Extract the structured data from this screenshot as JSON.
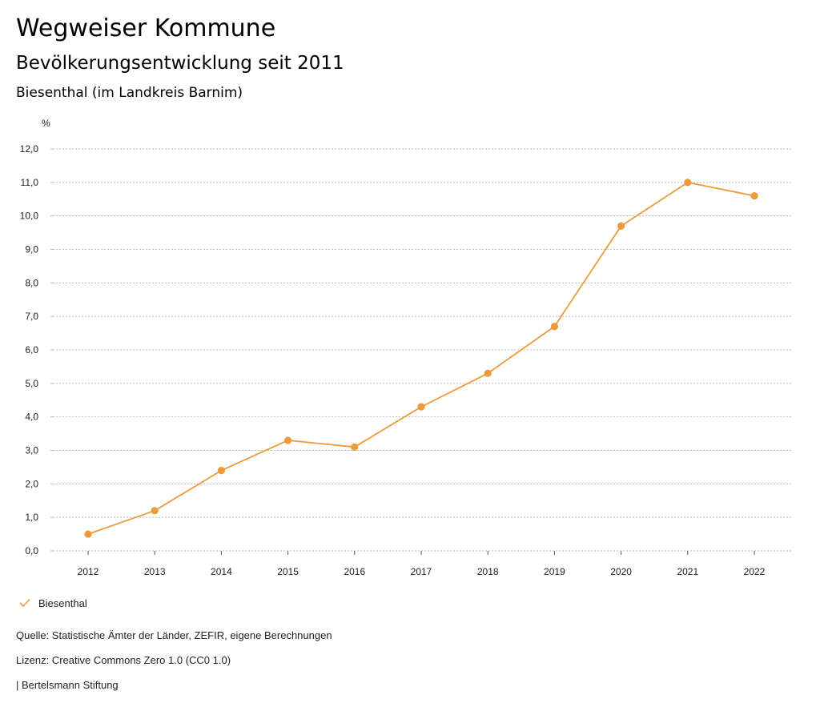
{
  "header": {
    "title": "Wegweiser Kommune",
    "subtitle": "Bevölkerungsentwicklung seit 2011",
    "region": "Biesenthal (im Landkreis Barnim)"
  },
  "chart_data": {
    "type": "line",
    "title": "Bevölkerungsentwicklung seit 2011",
    "unit": "%",
    "xlabel": "",
    "ylabel": "%",
    "x": [
      "2012",
      "2013",
      "2014",
      "2015",
      "2016",
      "2017",
      "2018",
      "2019",
      "2020",
      "2021",
      "2022"
    ],
    "ylim": [
      0,
      12
    ],
    "y_ticks": [
      "0,0",
      "1,0",
      "2,0",
      "3,0",
      "4,0",
      "5,0",
      "6,0",
      "7,0",
      "8,0",
      "9,0",
      "10,0",
      "11,0",
      "12,0"
    ],
    "grid": true,
    "legend_position": "bottom-left",
    "series": [
      {
        "name": "Biesenthal",
        "color": "#EE9A3A",
        "values": [
          0.5,
          1.2,
          2.4,
          3.3,
          3.1,
          4.3,
          5.3,
          6.7,
          9.7,
          11.0,
          10.6
        ]
      }
    ]
  },
  "legend": {
    "label": "Biesenthal",
    "icon": "check-icon"
  },
  "footer": {
    "source": "Quelle: Statistische Ämter der Länder, ZEFIR, eigene Berechnungen",
    "license": "Lizenz: Creative Commons Zero 1.0 (CC0 1.0)",
    "publisher": "| Bertelsmann Stiftung"
  },
  "colors": {
    "accent": "#EE9A3A",
    "grid": "#BBBBBB",
    "text": "#222222"
  }
}
